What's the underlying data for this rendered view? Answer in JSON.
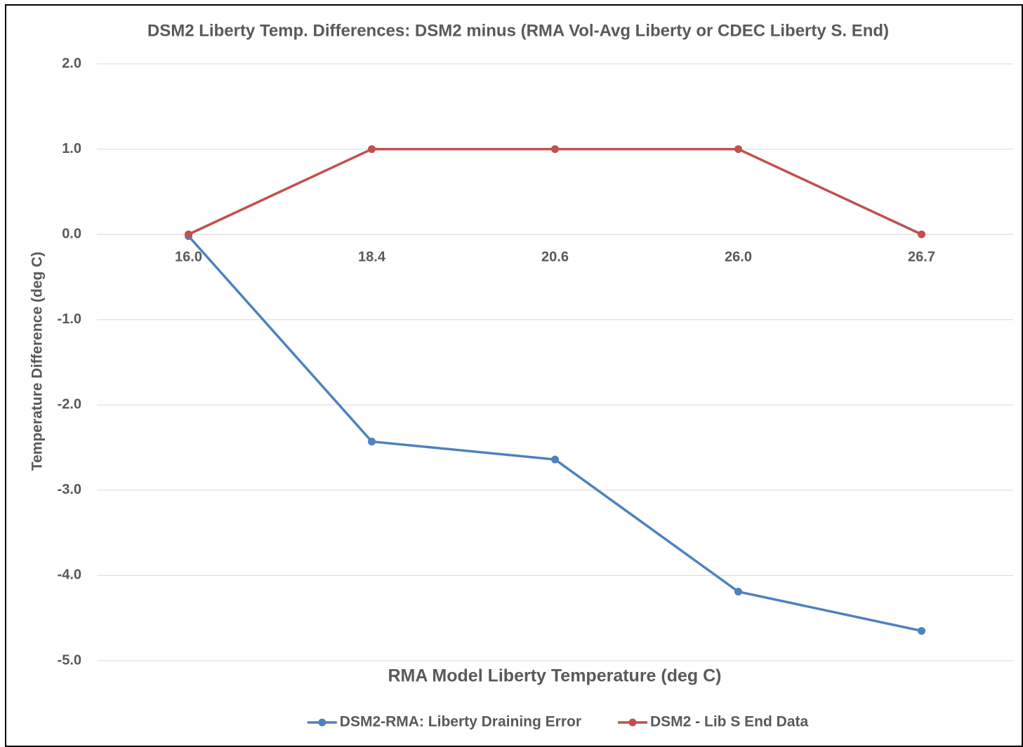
{
  "chart_data": {
    "type": "line",
    "title": "DSM2 Liberty Temp. Differences: DSM2 minus (RMA Vol-Avg Liberty or CDEC Liberty S. End)",
    "x_label": "RMA Model Liberty Temperature (deg C)",
    "y_label": "Temperature Difference (deg C)",
    "categories": [
      "16.0",
      "18.4",
      "20.6",
      "26.0",
      "26.7"
    ],
    "series": [
      {
        "name": "DSM2-RMA: Liberty Draining Error",
        "color": "#4f81bd",
        "values": [
          -0.02,
          -2.43,
          -2.64,
          -4.19,
          -4.65
        ]
      },
      {
        "name": "DSM2 - Lib S End Data",
        "color": "#c0504d",
        "values": [
          0,
          1,
          1,
          1,
          0
        ]
      }
    ],
    "ylim": [
      -5,
      2
    ],
    "yticks": [
      {
        "value": 2,
        "label": "2.0"
      },
      {
        "value": 1,
        "label": "1.0"
      },
      {
        "value": 0,
        "label": "0.0"
      },
      {
        "value": -1,
        "label": "-1.0"
      },
      {
        "value": -2,
        "label": "-2.0"
      },
      {
        "value": -3,
        "label": "-3.0"
      },
      {
        "value": -4,
        "label": "-4.0"
      },
      {
        "value": -5,
        "label": "-5.0"
      }
    ],
    "grid": true,
    "legend": "bottom"
  }
}
